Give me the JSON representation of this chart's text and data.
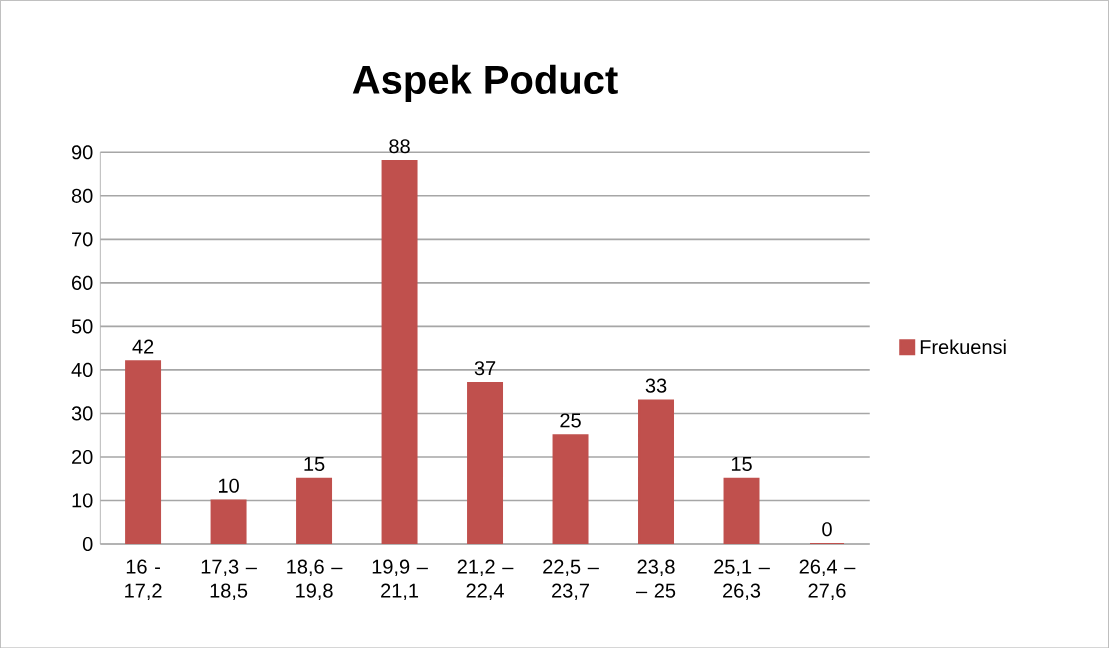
{
  "chart_data": {
    "type": "bar",
    "title": "Aspek Poduct",
    "categories": [
      "16 - 17,2",
      "17,3 – 18,5",
      "18,6 – 19,8",
      "19,9 – 21,1",
      "21,2 – 22,4",
      "22,5 – 23,7",
      "23,8 – 25",
      "25,1 – 26,3",
      "26,4 – 27,6"
    ],
    "series": [
      {
        "name": "Frekuensi",
        "color": "#c0504d",
        "values": [
          42,
          10,
          15,
          88,
          37,
          25,
          33,
          15,
          0
        ]
      }
    ],
    "ylim": [
      0,
      90
    ],
    "yticks": [
      0,
      10,
      20,
      30,
      40,
      50,
      60,
      70,
      80,
      90
    ],
    "grid": "y",
    "legend": "right",
    "data_labels": true
  }
}
